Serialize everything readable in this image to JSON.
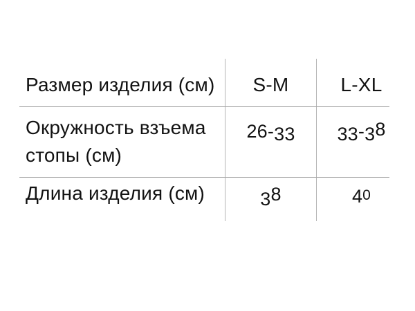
{
  "colors": {
    "background": "#ffffff",
    "text": "#121212",
    "line_horizontal": "#9b9b9b",
    "line_vertical": "#b4b4b4"
  },
  "chart_data": {
    "type": "table",
    "columns": [
      "Размер изделия (см)",
      "S-M",
      "L-XL"
    ],
    "rows": [
      [
        "Окружность взъема стопы (см)",
        "26-33",
        "33-38"
      ],
      [
        "Длина изделия (см)",
        "38",
        "40"
      ]
    ],
    "layout": {
      "grid": "partial",
      "visible_lines": "two horizontal separators, two vertical separators, no outer border"
    }
  }
}
